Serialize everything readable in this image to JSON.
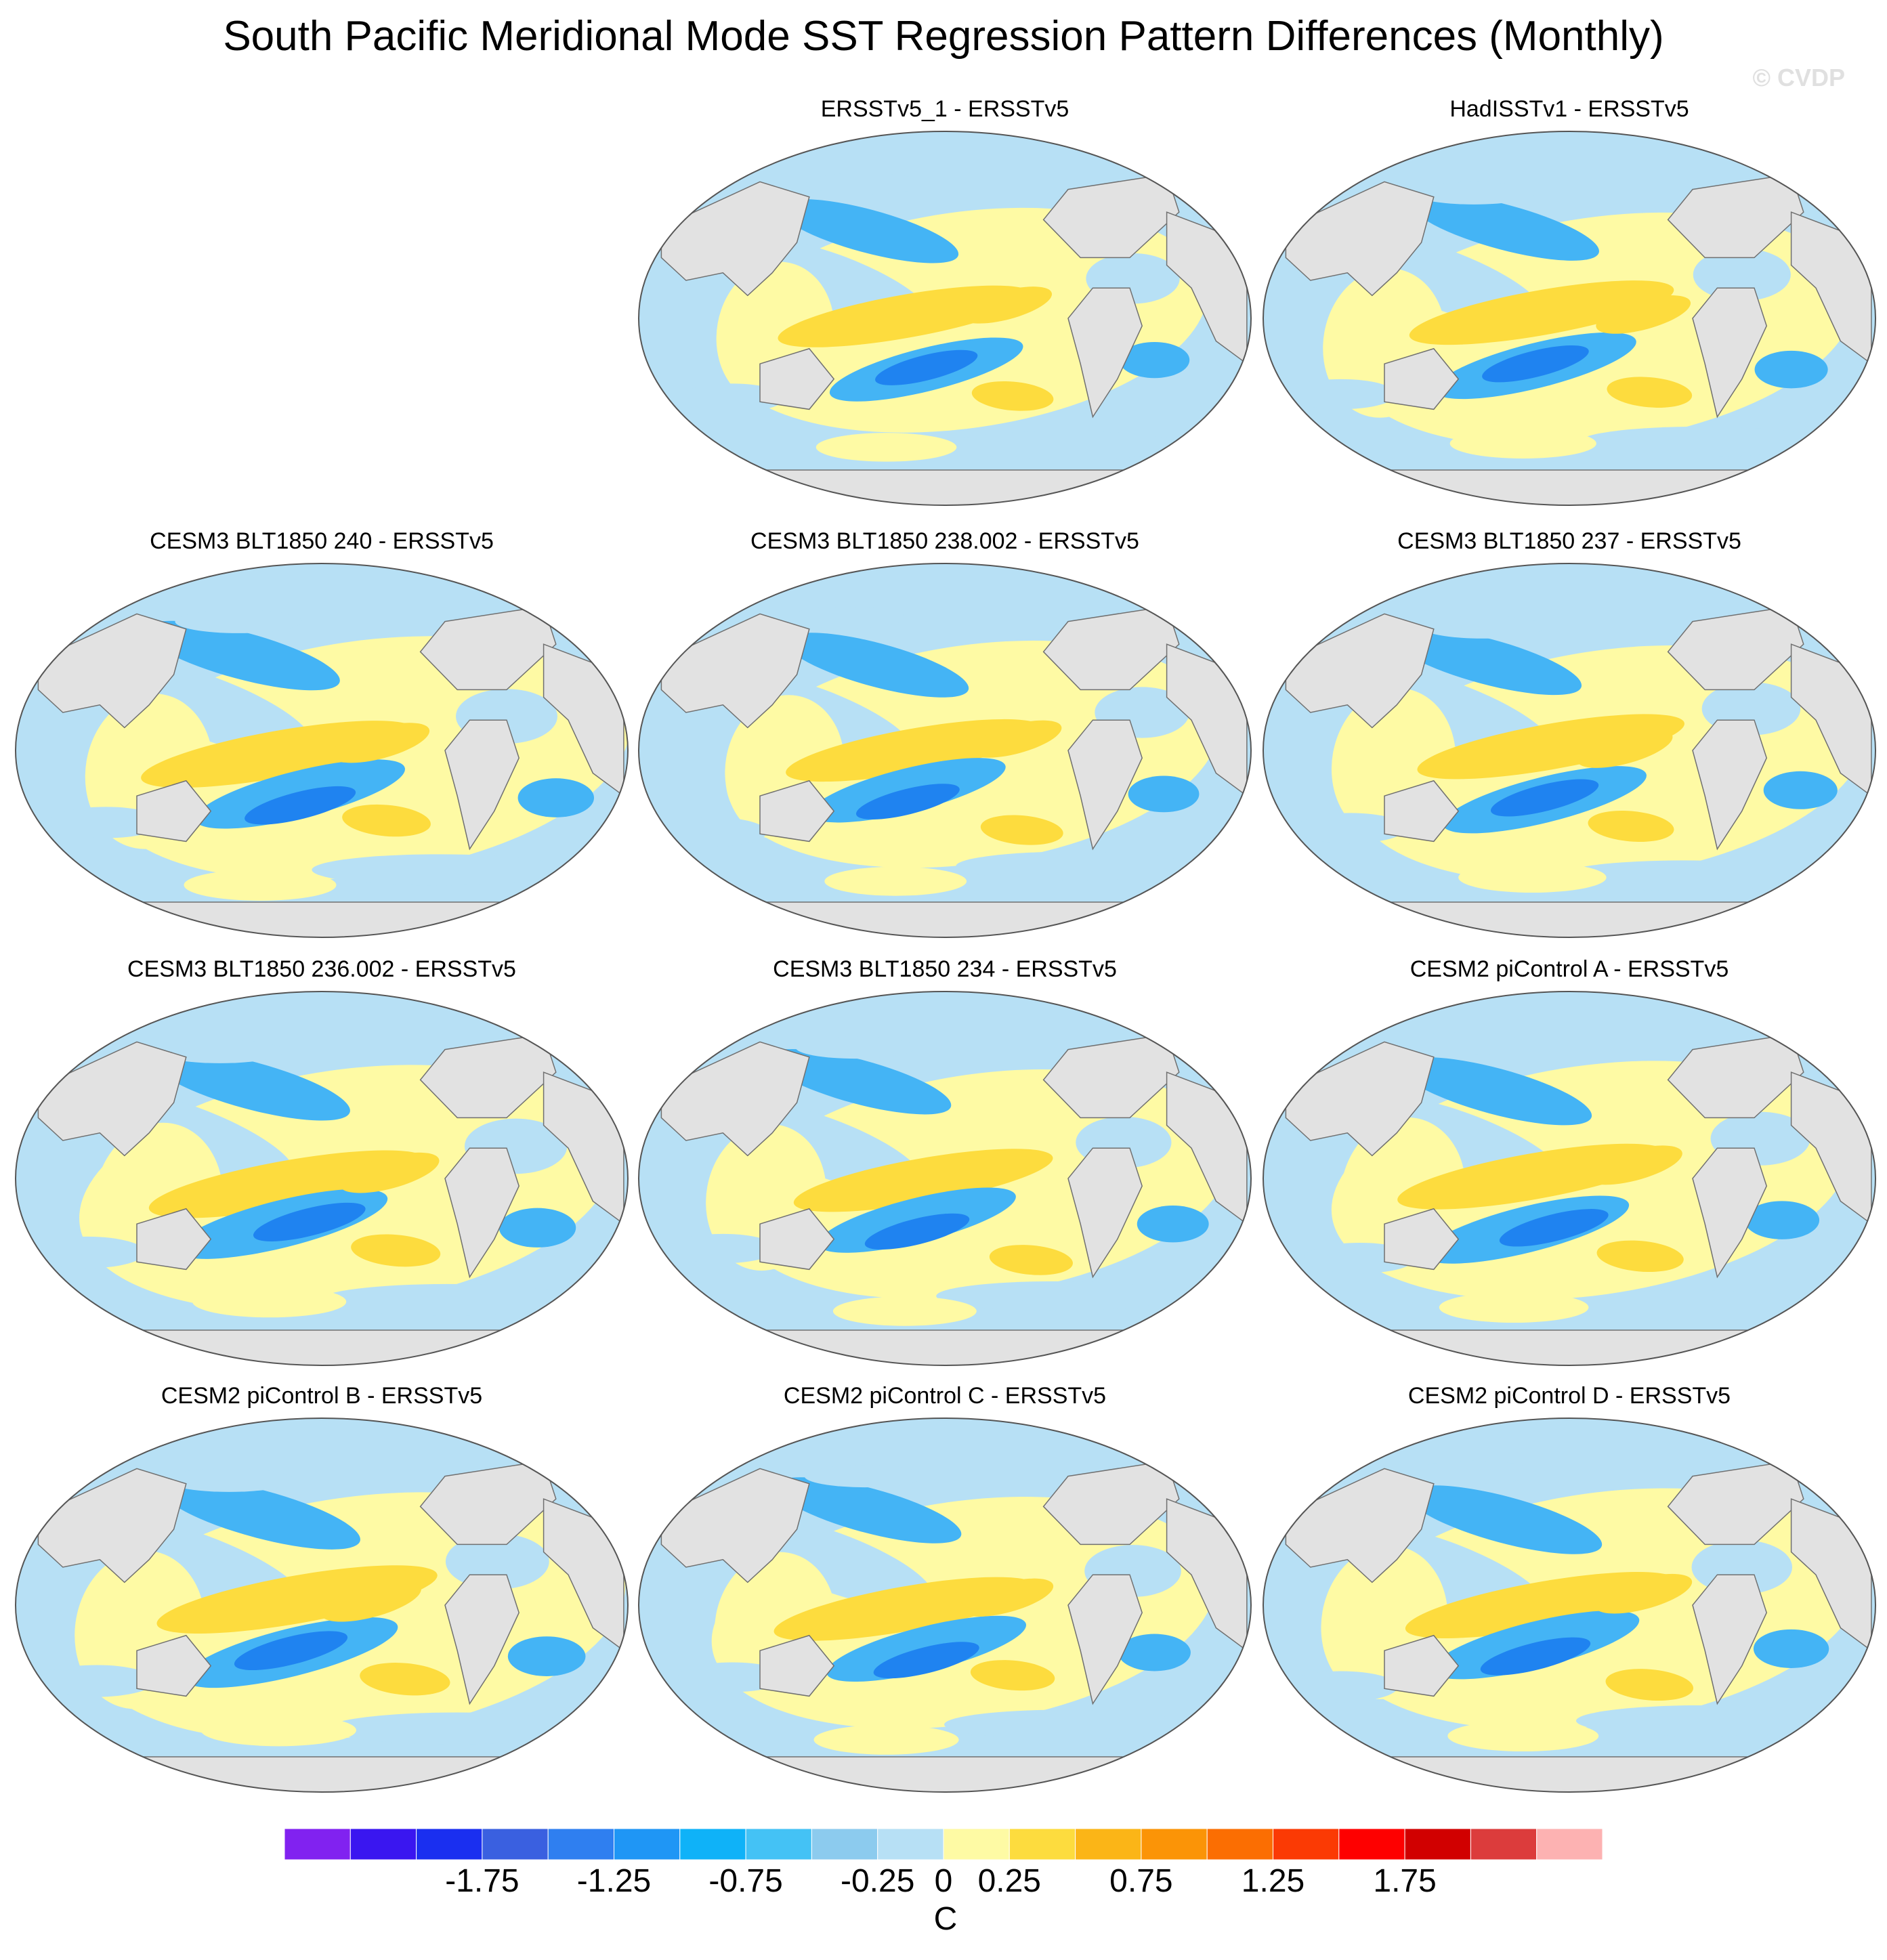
{
  "title": "South Pacific Meridional Mode SST Regression Pattern Differences (Monthly)",
  "watermark": "© CVDP",
  "chart_data": {
    "type": "heatmap",
    "projection": "Robinson-like global map, Pacific-centered",
    "variable": "SST regression difference",
    "layout": "4 rows × 3 columns; top-left position empty",
    "panels": [
      {
        "title": "ERSSTv5_1 - ERSSTv5",
        "row": 0,
        "col": 1
      },
      {
        "title": "HadISSTv1 - ERSSTv5",
        "row": 0,
        "col": 2
      },
      {
        "title": "CESM3 BLT1850 240 - ERSSTv5",
        "row": 1,
        "col": 0
      },
      {
        "title": "CESM3 BLT1850 238.002 - ERSSTv5",
        "row": 1,
        "col": 1
      },
      {
        "title": "CESM3 BLT1850 237 - ERSSTv5",
        "row": 1,
        "col": 2
      },
      {
        "title": "CESM3 BLT1850 236.002 - ERSSTv5",
        "row": 2,
        "col": 0
      },
      {
        "title": "CESM3 BLT1850 234 - ERSSTv5",
        "row": 2,
        "col": 1
      },
      {
        "title": "CESM2 piControl A - ERSSTv5",
        "row": 2,
        "col": 2
      },
      {
        "title": "CESM2 piControl B - ERSSTv5",
        "row": 3,
        "col": 0
      },
      {
        "title": "CESM2 piControl C - ERSSTv5",
        "row": 3,
        "col": 1
      },
      {
        "title": "CESM2 piControl D - ERSSTv5",
        "row": 3,
        "col": 2
      }
    ],
    "colorbar": {
      "unit": "C",
      "levels": [
        -2.0,
        -1.75,
        -1.5,
        -1.25,
        -1.0,
        -0.75,
        -0.5,
        -0.25,
        0,
        0.25,
        0.5,
        0.75,
        1.0,
        1.25,
        1.5,
        1.75,
        2.0
      ],
      "tick_labels": [
        "-1.75",
        "-1.25",
        "-0.75",
        "-0.25",
        "0",
        "0.25",
        "0.75",
        "1.25",
        "1.75"
      ],
      "colors": [
        "#8122f0",
        "#3a16f0",
        "#1a2ff0",
        "#3a60e0",
        "#2f7ff0",
        "#1f96f5",
        "#0fb2f8",
        "#44c2f5",
        "#8ccbee",
        "#b7e0f5",
        "#fefaa4",
        "#fddc3e",
        "#fbb517",
        "#fb9407",
        "#fb6e02",
        "#fb3a04",
        "#fe0000",
        "#d10000",
        "#dc3c3c",
        "#fdb2b2"
      ]
    },
    "map_colors": {
      "land": "#e2e2e2",
      "coast": "#707070",
      "strong_neg": "#1f83f0",
      "neg": "#44b4f5",
      "weak_neg": "#b7e0f5",
      "weak_pos": "#fefaa4",
      "pos": "#fddc3e",
      "strong_pos": "#fbb517"
    }
  }
}
